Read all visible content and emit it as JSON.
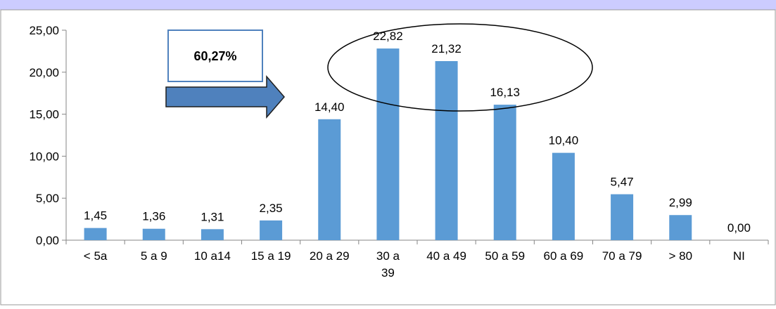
{
  "colors": {
    "bar": "#5b9bd5",
    "header_band": "#ccccff",
    "arrow_fill": "#4f81bd",
    "arrow_stroke": "#1f1f1f",
    "callout_border": "#4f81bd"
  },
  "chart_data": {
    "type": "bar",
    "title": "",
    "xlabel": "",
    "ylabel": "",
    "categories": [
      "< 5a",
      "5 a 9",
      "10 a14",
      "15 a 19",
      "20 a 29",
      "30 a 39",
      "40 a 49",
      "50 a 59",
      "60 a 69",
      "70 a 79",
      "> 80",
      "NI"
    ],
    "values": [
      1.45,
      1.36,
      1.31,
      2.35,
      14.4,
      22.82,
      21.32,
      16.13,
      10.4,
      5.47,
      2.99,
      0.0
    ],
    "value_labels": [
      "1,45",
      "1,36",
      "1,31",
      "2,35",
      "14,40",
      "22,82",
      "21,32",
      "16,13",
      "10,40",
      "5,47",
      "2,99",
      "0,00"
    ],
    "ylim": [
      0,
      25
    ],
    "yticks": [
      0,
      5,
      10,
      15,
      20,
      25
    ],
    "ytick_labels": [
      "0,00",
      "5,00",
      "10,00",
      "15,00",
      "20,00",
      "25,00"
    ],
    "grid": false,
    "legend": "none",
    "annotations": {
      "callout_text": "60,27%",
      "highlighted_categories": [
        "30 a 39",
        "40 a 49",
        "50 a 59"
      ]
    }
  }
}
